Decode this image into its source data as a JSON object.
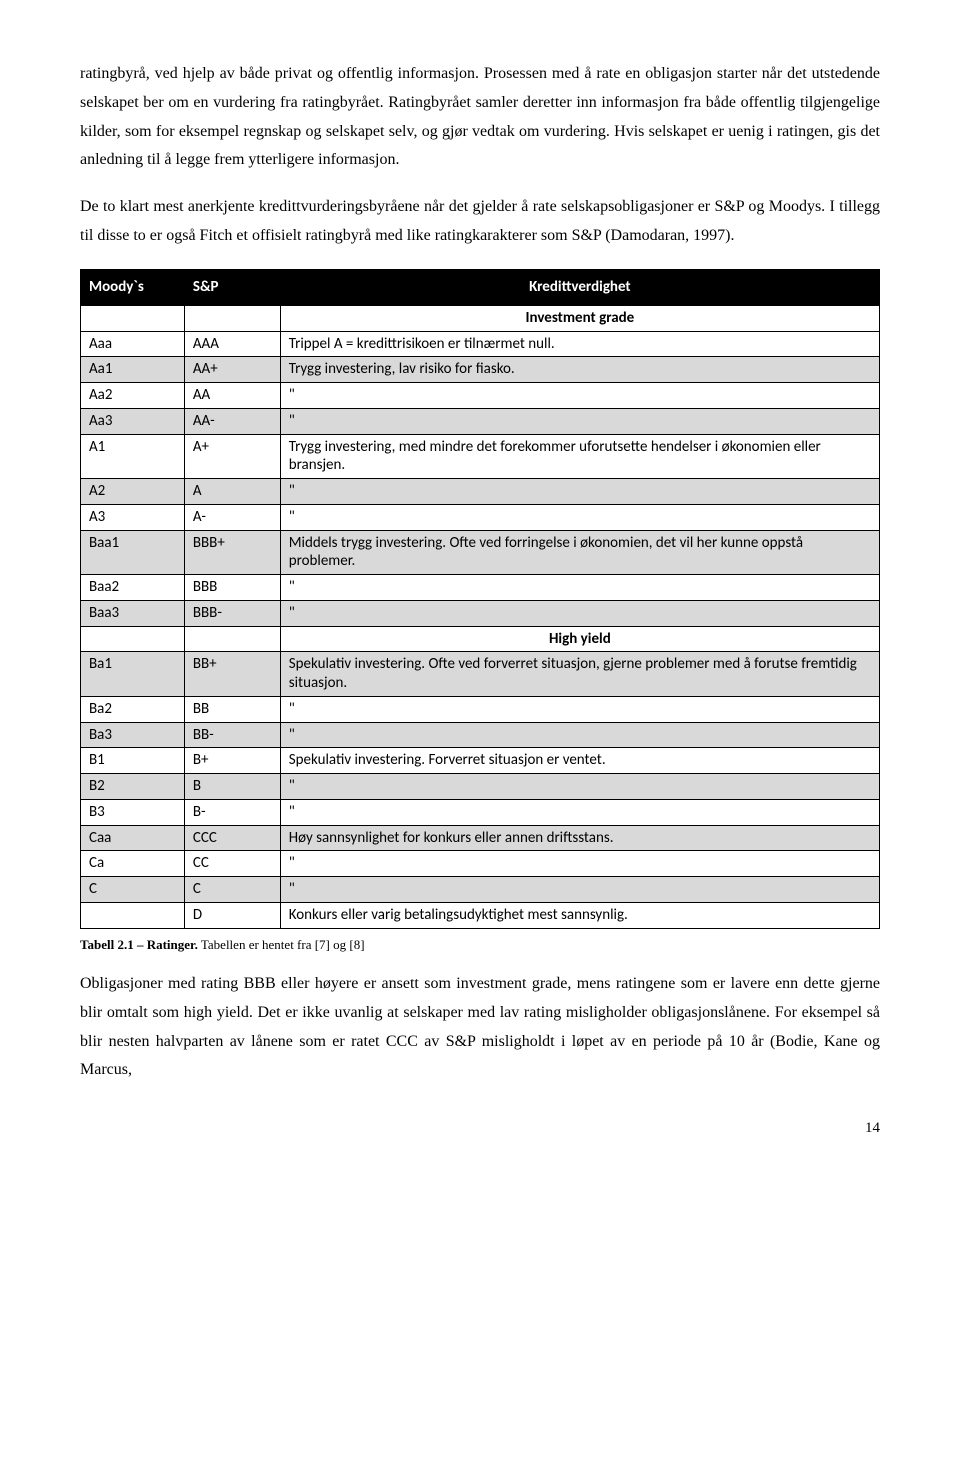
{
  "paragraphs": {
    "p1": "ratingbyrå, ved hjelp av både privat og offentlig informasjon. Prosessen med å rate en obligasjon starter når det utstedende selskapet ber om en vurdering fra ratingbyrået. Ratingbyrået samler deretter inn informasjon fra både offentlig tilgjengelige kilder, som for eksempel regnskap og selskapet selv, og gjør vedtak om vurdering. Hvis selskapet er uenig i ratingen, gis det anledning til å legge frem ytterligere informasjon.",
    "p2": "De to klart mest anerkjente kredittvurderingsbyråene når det gjelder å rate selskapsobligasjoner er S&P og Moodys. I tillegg til disse to er også Fitch et offisielt ratingbyrå med like ratingkarakterer som S&P (Damodaran, 1997).",
    "p3": "Obligasjoner med rating BBB eller høyere er ansett som investment grade, mens ratingene som er lavere enn dette gjerne blir omtalt som high yield. Det er ikke uvanlig at selskaper med lav rating misligholder obligasjonslånene. For eksempel så blir nesten halvparten av lånene som er ratet CCC av S&P misligholdt i løpet av en periode på 10 år (Bodie, Kane og Marcus,"
  },
  "table": {
    "headers": {
      "moody": "Moody`s",
      "sp": "S&P",
      "desc": "Kredittverdighet"
    },
    "section1": "Investment grade",
    "section2": "High yield",
    "rows_a": [
      {
        "m": "Aaa",
        "s": "AAA",
        "d": "Trippel A = kredittrisikoen er tilnærmet null.",
        "shaded": false
      },
      {
        "m": "Aa1",
        "s": "AA+",
        "d": "Trygg investering, lav risiko for fiasko.",
        "shaded": true
      },
      {
        "m": "Aa2",
        "s": "AA",
        "d": "\"",
        "shaded": false
      },
      {
        "m": "Aa3",
        "s": "AA-",
        "d": "\"",
        "shaded": true
      },
      {
        "m": "A1",
        "s": "A+",
        "d": "Trygg investering, med mindre det forekommer uforutsette hendelser i økonomien eller bransjen.",
        "shaded": false
      },
      {
        "m": "A2",
        "s": "A",
        "d": "\"",
        "shaded": true
      },
      {
        "m": "A3",
        "s": "A-",
        "d": "\"",
        "shaded": false
      },
      {
        "m": "Baa1",
        "s": "BBB+",
        "d": "Middels trygg investering. Ofte ved forringelse i økonomien, det vil her kunne oppstå problemer.",
        "shaded": true
      },
      {
        "m": "Baa2",
        "s": "BBB",
        "d": "\"",
        "shaded": false
      },
      {
        "m": "Baa3",
        "s": "BBB-",
        "d": "\"",
        "shaded": true
      }
    ],
    "rows_b": [
      {
        "m": "Ba1",
        "s": "BB+",
        "d": "Spekulativ investering. Ofte ved forverret situasjon, gjerne problemer med å forutse fremtidig situasjon.",
        "shaded": true
      },
      {
        "m": "Ba2",
        "s": "BB",
        "d": "\"",
        "shaded": false
      },
      {
        "m": "Ba3",
        "s": "BB-",
        "d": "\"",
        "shaded": true
      },
      {
        "m": "B1",
        "s": "B+",
        "d": "Spekulativ investering. Forverret situasjon er ventet.",
        "shaded": false
      },
      {
        "m": "B2",
        "s": "B",
        "d": "\"",
        "shaded": true
      },
      {
        "m": "B3",
        "s": "B-",
        "d": "\"",
        "shaded": false
      },
      {
        "m": "Caa",
        "s": "CCC",
        "d": "Høy sannsynlighet for konkurs eller annen driftsstans.",
        "shaded": true
      },
      {
        "m": "Ca",
        "s": "CC",
        "d": "\"",
        "shaded": false
      },
      {
        "m": "C",
        "s": "C",
        "d": "\"",
        "shaded": true
      },
      {
        "m": "",
        "s": "D",
        "d": "Konkurs eller varig betalingsudyktighet mest sannsynlig.",
        "shaded": false
      }
    ]
  },
  "caption": {
    "bold": "Tabell 2.1 – Ratinger.",
    "rest": " Tabellen er hentet fra [7] og [8]"
  },
  "page_number": "14"
}
